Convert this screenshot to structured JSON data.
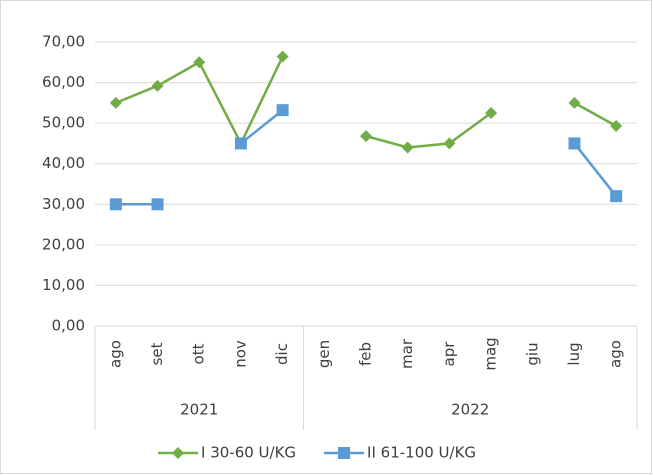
{
  "chart_data": {
    "type": "line",
    "categories": [
      "ago",
      "set",
      "ott",
      "nov",
      "dic",
      "gen",
      "feb",
      "mar",
      "apr",
      "mag",
      "giu",
      "lug",
      "ago"
    ],
    "groups": [
      {
        "name": "2021",
        "size": 5
      },
      {
        "name": "2022",
        "size": 8
      }
    ],
    "series": [
      {
        "name": "I 30-60 U/KG",
        "color": "#70ad47",
        "marker": "diamond",
        "values": [
          55,
          59.2,
          65,
          45,
          66.4,
          null,
          46.8,
          44,
          45,
          52.5,
          null,
          55,
          49.3
        ]
      },
      {
        "name": "II 61-100 U/KG",
        "color": "#5b9bd5",
        "marker": "square",
        "values": [
          30,
          30,
          null,
          45,
          53.2,
          null,
          null,
          null,
          null,
          null,
          null,
          45,
          32
        ]
      }
    ],
    "ylim": [
      0,
      70
    ],
    "yticks": [
      {
        "value": 0,
        "label": "0,00"
      },
      {
        "value": 10,
        "label": "10,00"
      },
      {
        "value": 20,
        "label": "20,00"
      },
      {
        "value": 30,
        "label": "30,00"
      },
      {
        "value": 40,
        "label": "40,00"
      },
      {
        "value": 50,
        "label": "50,00"
      },
      {
        "value": 60,
        "label": "60,00"
      },
      {
        "value": 70,
        "label": "70,00"
      }
    ],
    "grid": true,
    "legend": "bottom"
  }
}
